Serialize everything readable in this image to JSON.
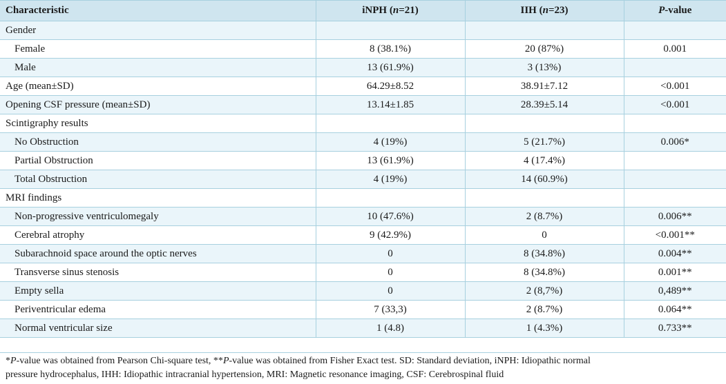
{
  "header": {
    "characteristic": "Characteristic",
    "inph_name": "iNPH (",
    "inph_n": "n",
    "inph_count": "=21)",
    "iih_name": "IIH (",
    "iih_n": "n",
    "iih_count": "=23)",
    "pvalue_p": "P",
    "pvalue_rest": "-value"
  },
  "rows": [
    {
      "label": "Gender",
      "inph": "",
      "iih": "",
      "p": ""
    },
    {
      "label": "Female",
      "inph": "8 (38.1%)",
      "iih": "20 (87%)",
      "p": "0.001"
    },
    {
      "label": "Male",
      "inph": "13 (61.9%)",
      "iih": "3 (13%)",
      "p": ""
    },
    {
      "label": "Age (mean±SD)",
      "inph": "64.29±8.52",
      "iih": "38.91±7.12",
      "p": "<0.001"
    },
    {
      "label": "Opening CSF pressure (mean±SD)",
      "inph": "13.14±1.85",
      "iih": "28.39±5.14",
      "p": "<0.001"
    },
    {
      "label": "Scintigraphy results",
      "inph": "",
      "iih": "",
      "p": ""
    },
    {
      "label": "No Obstruction",
      "inph": "4 (19%)",
      "iih": "5 (21.7%)",
      "p": "0.006*"
    },
    {
      "label": "Partial Obstruction",
      "inph": "13 (61.9%)",
      "iih": "4 (17.4%)",
      "p": ""
    },
    {
      "label": "Total Obstruction",
      "inph": "4 (19%)",
      "iih": "14 (60.9%)",
      "p": ""
    },
    {
      "label": "MRI findings",
      "inph": "",
      "iih": "",
      "p": ""
    },
    {
      "label": "Non-progressive ventriculomegaly",
      "inph": "10 (47.6%)",
      "iih": "2 (8.7%)",
      "p": "0.006**"
    },
    {
      "label": "Cerebral atrophy",
      "inph": "9 (42.9%)",
      "iih": "0",
      "p": "<0.001**"
    },
    {
      "label": "Subarachnoid space around the optic nerves",
      "inph": "0",
      "iih": "8 (34.8%)",
      "p": "0.004**"
    },
    {
      "label": "Transverse sinus stenosis",
      "inph": "0",
      "iih": "8 (34.8%)",
      "p": "0.001**"
    },
    {
      "label": "Empty sella",
      "inph": "0",
      "iih": "2 (8,7%)",
      "p": "0,489**"
    },
    {
      "label": "Periventricular edema",
      "inph": "7 (33,3)",
      "iih": "2 (8.7%)",
      "p": "0.064**"
    },
    {
      "label": "Normal ventricular size",
      "inph": "1 (4.8)",
      "iih": "1 (4.3%)",
      "p": "0.733**"
    }
  ],
  "footnote": {
    "star1": "*",
    "p1": "P",
    "text1": "-value was obtained from Pearson Chi-square test, **",
    "p2": "P",
    "text2": "-value was obtained from Fisher Exact test. SD: Standard deviation, iNPH: Idiopathic normal",
    "line2": "pressure hydrocephalus, IHH: Idiopathic intracranial hypertension, MRI: Magnetic resonance imaging, CSF: Cerebrospinal fluid"
  }
}
